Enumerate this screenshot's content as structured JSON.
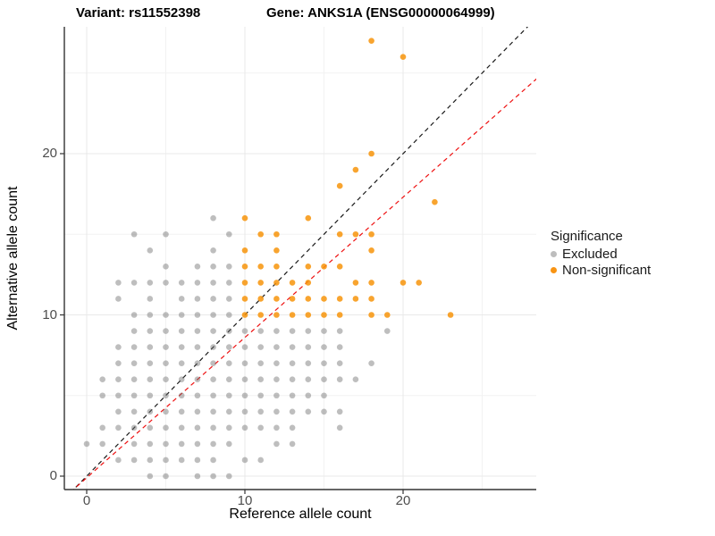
{
  "titles": {
    "variant": "Variant: rs11552398",
    "gene": "Gene: ANKS1A (ENSG00000064999)"
  },
  "axes": {
    "x": {
      "label": "Reference allele count",
      "tick_labels": [
        "0",
        "10",
        "20"
      ]
    },
    "y": {
      "label": "Alternative allele count",
      "tick_labels": [
        "0",
        "10",
        "20"
      ]
    }
  },
  "legend": {
    "title": "Significance",
    "items": [
      {
        "label": "Excluded",
        "color": "#bdbdbd"
      },
      {
        "label": "Non-significant",
        "color": "#f89413"
      }
    ]
  },
  "chart_data": {
    "type": "scatter",
    "title_left": "Variant: rs11552398",
    "title_right": "Gene: ANKS1A (ENSG00000064999)",
    "xlabel": "Reference allele count",
    "ylabel": "Alternative allele count",
    "xlim": [
      -1.4,
      28.5
    ],
    "ylim": [
      -0.85,
      27.9
    ],
    "x_ticks": [
      0,
      10,
      20
    ],
    "y_ticks": [
      0,
      10,
      20
    ],
    "x_minor_ticks": [
      5,
      15,
      25
    ],
    "y_minor_ticks": [
      5,
      15,
      25
    ],
    "grid": true,
    "legend_title": "Significance",
    "legend_position": "right",
    "point_radius_px": 3.3,
    "series": [
      {
        "name": "Excluded",
        "color": "rgba(110,110,110,0.45)",
        "points": [
          [
            4,
            0
          ],
          [
            5,
            0
          ],
          [
            7,
            0
          ],
          [
            8,
            0
          ],
          [
            9,
            0
          ],
          [
            2,
            1
          ],
          [
            3,
            1
          ],
          [
            4,
            1
          ],
          [
            5,
            1
          ],
          [
            6,
            1
          ],
          [
            7,
            1
          ],
          [
            8,
            1
          ],
          [
            10,
            1
          ],
          [
            11,
            1
          ],
          [
            0,
            2
          ],
          [
            1,
            2
          ],
          [
            3,
            2
          ],
          [
            4,
            2
          ],
          [
            5,
            2
          ],
          [
            6,
            2
          ],
          [
            7,
            2
          ],
          [
            8,
            2
          ],
          [
            9,
            2
          ],
          [
            12,
            2
          ],
          [
            13,
            2
          ],
          [
            1,
            3
          ],
          [
            2,
            3
          ],
          [
            3,
            3
          ],
          [
            4,
            3
          ],
          [
            5,
            3
          ],
          [
            6,
            3
          ],
          [
            7,
            3
          ],
          [
            8,
            3
          ],
          [
            9,
            3
          ],
          [
            10,
            3
          ],
          [
            11,
            3
          ],
          [
            12,
            3
          ],
          [
            13,
            3
          ],
          [
            16,
            3
          ],
          [
            2,
            4
          ],
          [
            3,
            4
          ],
          [
            4,
            4
          ],
          [
            5,
            4
          ],
          [
            6,
            4
          ],
          [
            7,
            4
          ],
          [
            8,
            4
          ],
          [
            9,
            4
          ],
          [
            10,
            4
          ],
          [
            11,
            4
          ],
          [
            12,
            4
          ],
          [
            13,
            4
          ],
          [
            14,
            4
          ],
          [
            15,
            4
          ],
          [
            16,
            4
          ],
          [
            1,
            5
          ],
          [
            2,
            5
          ],
          [
            3,
            5
          ],
          [
            4,
            5
          ],
          [
            5,
            5
          ],
          [
            6,
            5
          ],
          [
            7,
            5
          ],
          [
            8,
            5
          ],
          [
            9,
            5
          ],
          [
            10,
            5
          ],
          [
            11,
            5
          ],
          [
            12,
            5
          ],
          [
            13,
            5
          ],
          [
            14,
            5
          ],
          [
            15,
            5
          ],
          [
            1,
            6
          ],
          [
            2,
            6
          ],
          [
            3,
            6
          ],
          [
            4,
            6
          ],
          [
            5,
            6
          ],
          [
            6,
            6
          ],
          [
            7,
            6
          ],
          [
            8,
            6
          ],
          [
            9,
            6
          ],
          [
            10,
            6
          ],
          [
            11,
            6
          ],
          [
            12,
            6
          ],
          [
            13,
            6
          ],
          [
            14,
            6
          ],
          [
            15,
            6
          ],
          [
            16,
            6
          ],
          [
            17,
            6
          ],
          [
            2,
            7
          ],
          [
            3,
            7
          ],
          [
            4,
            7
          ],
          [
            5,
            7
          ],
          [
            6,
            7
          ],
          [
            7,
            7
          ],
          [
            8,
            7
          ],
          [
            9,
            7
          ],
          [
            10,
            7
          ],
          [
            11,
            7
          ],
          [
            12,
            7
          ],
          [
            13,
            7
          ],
          [
            14,
            7
          ],
          [
            15,
            7
          ],
          [
            16,
            7
          ],
          [
            18,
            7
          ],
          [
            2,
            8
          ],
          [
            3,
            8
          ],
          [
            4,
            8
          ],
          [
            5,
            8
          ],
          [
            6,
            8
          ],
          [
            7,
            8
          ],
          [
            8,
            8
          ],
          [
            9,
            8
          ],
          [
            10,
            8
          ],
          [
            11,
            8
          ],
          [
            12,
            8
          ],
          [
            13,
            8
          ],
          [
            14,
            8
          ],
          [
            15,
            8
          ],
          [
            16,
            8
          ],
          [
            3,
            9
          ],
          [
            4,
            9
          ],
          [
            5,
            9
          ],
          [
            6,
            9
          ],
          [
            7,
            9
          ],
          [
            8,
            9
          ],
          [
            9,
            9
          ],
          [
            10,
            9
          ],
          [
            11,
            9
          ],
          [
            12,
            9
          ],
          [
            13,
            9
          ],
          [
            14,
            9
          ],
          [
            15,
            9
          ],
          [
            16,
            9
          ],
          [
            19,
            9
          ],
          [
            3,
            10
          ],
          [
            4,
            10
          ],
          [
            5,
            10
          ],
          [
            6,
            10
          ],
          [
            7,
            10
          ],
          [
            8,
            10
          ],
          [
            9,
            10
          ],
          [
            2,
            11
          ],
          [
            4,
            11
          ],
          [
            6,
            11
          ],
          [
            7,
            11
          ],
          [
            8,
            11
          ],
          [
            9,
            11
          ],
          [
            2,
            12
          ],
          [
            3,
            12
          ],
          [
            4,
            12
          ],
          [
            5,
            12
          ],
          [
            6,
            12
          ],
          [
            7,
            12
          ],
          [
            8,
            12
          ],
          [
            9,
            12
          ],
          [
            5,
            13
          ],
          [
            7,
            13
          ],
          [
            8,
            13
          ],
          [
            9,
            13
          ],
          [
            4,
            14
          ],
          [
            8,
            14
          ],
          [
            3,
            15
          ],
          [
            5,
            15
          ],
          [
            9,
            15
          ],
          [
            8,
            16
          ]
        ]
      },
      {
        "name": "Non-significant",
        "color": "rgba(247,148,10,0.85)",
        "points": [
          [
            10,
            10
          ],
          [
            11,
            10
          ],
          [
            12,
            10
          ],
          [
            13,
            10
          ],
          [
            14,
            10
          ],
          [
            15,
            10
          ],
          [
            16,
            10
          ],
          [
            18,
            10
          ],
          [
            19,
            10
          ],
          [
            23,
            10
          ],
          [
            10,
            11
          ],
          [
            11,
            11
          ],
          [
            12,
            11
          ],
          [
            13,
            11
          ],
          [
            14,
            11
          ],
          [
            15,
            11
          ],
          [
            16,
            11
          ],
          [
            17,
            11
          ],
          [
            18,
            11
          ],
          [
            10,
            12
          ],
          [
            11,
            12
          ],
          [
            12,
            12
          ],
          [
            13,
            12
          ],
          [
            14,
            12
          ],
          [
            17,
            12
          ],
          [
            18,
            12
          ],
          [
            20,
            12
          ],
          [
            21,
            12
          ],
          [
            10,
            13
          ],
          [
            11,
            13
          ],
          [
            12,
            13
          ],
          [
            14,
            13
          ],
          [
            15,
            13
          ],
          [
            16,
            13
          ],
          [
            10,
            14
          ],
          [
            12,
            14
          ],
          [
            18,
            14
          ],
          [
            11,
            15
          ],
          [
            12,
            15
          ],
          [
            16,
            15
          ],
          [
            17,
            15
          ],
          [
            18,
            15
          ],
          [
            10,
            16
          ],
          [
            14,
            16
          ],
          [
            22,
            17
          ],
          [
            16,
            18
          ],
          [
            17,
            19
          ],
          [
            18,
            20
          ],
          [
            20,
            26
          ],
          [
            18,
            27
          ]
        ]
      }
    ],
    "lines": [
      {
        "name": "identity-line",
        "slope": 1,
        "intercept": 0,
        "color": "#1a1a1a",
        "dash": "5,4"
      },
      {
        "name": "fit-line",
        "slope": 0.87,
        "intercept": -0.1,
        "color": "#ee1111",
        "dash": "5,4"
      }
    ]
  }
}
